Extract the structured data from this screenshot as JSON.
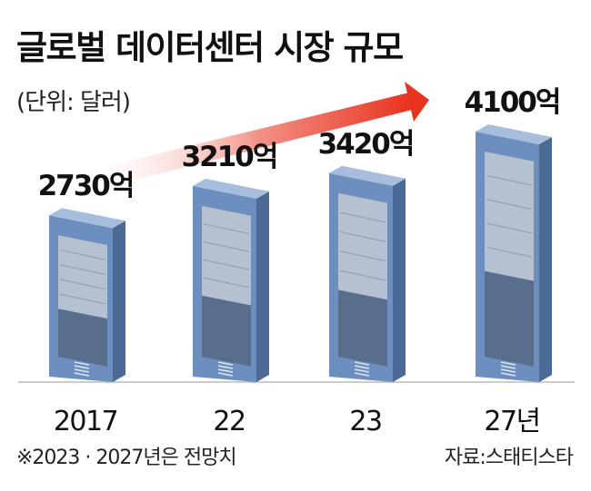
{
  "title": "글로벌 데이터센터 시장 규모",
  "unit": "(단위: 달러)",
  "footnote": "※2023 · 2027년은 전망치",
  "source": "자료:스태티스타",
  "colors": {
    "rack_front": "#6d8fbf",
    "rack_top": "#a7bddc",
    "rack_side": "#4c6a96",
    "rack_door": "#bcc6d3",
    "rack_door_low": "#596d8c",
    "arrow_start": "#ffffff",
    "arrow_end": "#e8331f",
    "axis": "#bbbbbb"
  },
  "chart_data": {
    "type": "bar",
    "categories": [
      "2017",
      "22",
      "23",
      "27년"
    ],
    "values": [
      2730,
      3210,
      3420,
      4100
    ],
    "value_labels": [
      "2730억",
      "3210억",
      "3420억",
      "4100억"
    ],
    "ylim": [
      0,
      4100
    ],
    "trend_arrow": true,
    "grid": false,
    "legend": "none"
  }
}
